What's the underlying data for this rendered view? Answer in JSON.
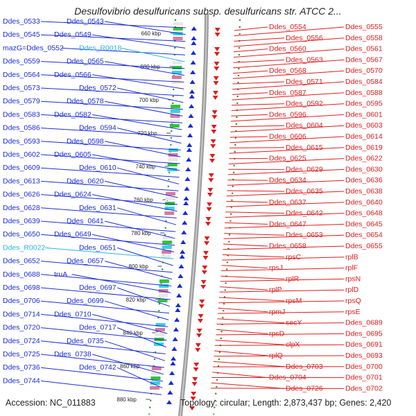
{
  "title": "Desulfovibrio desulfuricans subsp. desulfuricans str. ATCC 2...",
  "footer": {
    "accession": "Accession: NC_011883",
    "info": "Topology: circular; Length: 2,873,437 bp; Genes: 2,420"
  },
  "colors": {
    "left_strand": "#1a2bd6",
    "rna": "#27b4e6",
    "right_strand": "#e01b1b",
    "backbone": "#999999",
    "tick_dots": "#2a8a2a"
  },
  "scale_ticks": [
    "660 kbp",
    "680 kbp",
    "700 kbp",
    "720 kbp",
    "740 kbp",
    "760 kbp",
    "780 kbp",
    "800 kbp",
    "820 kbp",
    "840 kbp",
    "860 kbp",
    "880 kbp"
  ],
  "left_labels": [
    {
      "text": "Ddes_0533",
      "kind": "gene"
    },
    {
      "text": "Ddes_0543",
      "kind": "gene"
    },
    {
      "text": "Ddes_0545",
      "kind": "gene"
    },
    {
      "text": "Ddes_0549",
      "kind": "gene"
    },
    {
      "text": "mazG=Ddes_0552",
      "kind": "gene"
    },
    {
      "text": "Ddes_R0018",
      "kind": "rna"
    },
    {
      "text": "Ddes_0559",
      "kind": "gene"
    },
    {
      "text": "Ddes_0565",
      "kind": "gene"
    },
    {
      "text": "Ddes_0564",
      "kind": "gene"
    },
    {
      "text": "Ddes_0566",
      "kind": "gene"
    },
    {
      "text": "Ddes_0573",
      "kind": "gene"
    },
    {
      "text": "Ddes_0572",
      "kind": "gene"
    },
    {
      "text": "Ddes_0579",
      "kind": "gene"
    },
    {
      "text": "Ddes_0578",
      "kind": "gene"
    },
    {
      "text": "Ddes_0583",
      "kind": "gene"
    },
    {
      "text": "Ddes_0582",
      "kind": "gene"
    },
    {
      "text": "Ddes_0586",
      "kind": "gene"
    },
    {
      "text": "Ddes_0594",
      "kind": "gene"
    },
    {
      "text": "Ddes_0593",
      "kind": "gene"
    },
    {
      "text": "Ddes_0598",
      "kind": "gene"
    },
    {
      "text": "Ddes_0602",
      "kind": "gene"
    },
    {
      "text": "Ddes_0605",
      "kind": "gene"
    },
    {
      "text": "Ddes_0609",
      "kind": "gene"
    },
    {
      "text": "Ddes_0610",
      "kind": "gene"
    },
    {
      "text": "Ddes_0613",
      "kind": "gene"
    },
    {
      "text": "Ddes_0620",
      "kind": "gene"
    },
    {
      "text": "Ddes_0626",
      "kind": "gene"
    },
    {
      "text": "Ddes_0624",
      "kind": "gene"
    },
    {
      "text": "Ddes_0628",
      "kind": "gene"
    },
    {
      "text": "Ddes_0631",
      "kind": "gene"
    },
    {
      "text": "Ddes_0639",
      "kind": "gene"
    },
    {
      "text": "Ddes_0641",
      "kind": "gene"
    },
    {
      "text": "Ddes_0650",
      "kind": "gene"
    },
    {
      "text": "Ddes_0649",
      "kind": "gene"
    },
    {
      "text": "Ddes_R0022",
      "kind": "rna"
    },
    {
      "text": "Ddes_0651",
      "kind": "gene"
    },
    {
      "text": "Ddes_0652",
      "kind": "gene"
    },
    {
      "text": "Ddes_0657",
      "kind": "gene"
    },
    {
      "text": "Ddes_0688",
      "kind": "gene"
    },
    {
      "text": "truA",
      "kind": "gene"
    },
    {
      "text": "Ddes_0698",
      "kind": "gene"
    },
    {
      "text": "Ddes_0697",
      "kind": "gene"
    },
    {
      "text": "Ddes_0706",
      "kind": "gene"
    },
    {
      "text": "Ddes_0699",
      "kind": "gene"
    },
    {
      "text": "Ddes_0714",
      "kind": "gene"
    },
    {
      "text": "Ddes_0710",
      "kind": "gene"
    },
    {
      "text": "Ddes_0720",
      "kind": "gene"
    },
    {
      "text": "Ddes_0717",
      "kind": "gene"
    },
    {
      "text": "Ddes_0724",
      "kind": "gene"
    },
    {
      "text": "Ddes_0735",
      "kind": "gene"
    },
    {
      "text": "Ddes_0725",
      "kind": "gene"
    },
    {
      "text": "Ddes_0738",
      "kind": "gene"
    },
    {
      "text": "Ddes_0736",
      "kind": "gene"
    },
    {
      "text": "Ddes_0742",
      "kind": "gene"
    },
    {
      "text": "Ddes_0744",
      "kind": "gene"
    }
  ],
  "right_labels": [
    {
      "text": "Ddes_0554"
    },
    {
      "text": "Ddes_0555"
    },
    {
      "text": "Ddes_0556"
    },
    {
      "text": "Ddes_0558"
    },
    {
      "text": "Ddes_0560"
    },
    {
      "text": "Ddes_0561"
    },
    {
      "text": "Ddes_0563"
    },
    {
      "text": "Ddes_0567"
    },
    {
      "text": "Ddes_0568"
    },
    {
      "text": "Ddes_0570"
    },
    {
      "text": "Ddes_0571"
    },
    {
      "text": "Ddes_0584"
    },
    {
      "text": "Ddes_0587"
    },
    {
      "text": "Ddes_0588"
    },
    {
      "text": "Ddes_0592"
    },
    {
      "text": "Ddes_0595"
    },
    {
      "text": "Ddes_0596"
    },
    {
      "text": "Ddes_0601"
    },
    {
      "text": "Ddes_0604"
    },
    {
      "text": "Ddes_0603"
    },
    {
      "text": "Ddes_0606"
    },
    {
      "text": "Ddes_0614"
    },
    {
      "text": "Ddes_0615"
    },
    {
      "text": "Ddes_0619"
    },
    {
      "text": "Ddes_0625"
    },
    {
      "text": "Ddes_0622"
    },
    {
      "text": "Ddes_0629"
    },
    {
      "text": "Ddes_0630"
    },
    {
      "text": "Ddes_0634"
    },
    {
      "text": "Ddes_0636"
    },
    {
      "text": "Ddes_0635"
    },
    {
      "text": "Ddes_0638"
    },
    {
      "text": "Ddes_0637"
    },
    {
      "text": "Ddes_0640"
    },
    {
      "text": "Ddes_0642"
    },
    {
      "text": "Ddes_0648"
    },
    {
      "text": "Ddes_0647"
    },
    {
      "text": "Ddes_0645"
    },
    {
      "text": "Ddes_0653"
    },
    {
      "text": "Ddes_0654"
    },
    {
      "text": "Ddes_0658"
    },
    {
      "text": "Ddes_0655"
    },
    {
      "text": "rpsC"
    },
    {
      "text": "rplB"
    },
    {
      "text": "rpsJ"
    },
    {
      "text": "rplF"
    },
    {
      "text": "rplR"
    },
    {
      "text": "rpsN"
    },
    {
      "text": "rplP"
    },
    {
      "text": "rplD"
    },
    {
      "text": "rpsM"
    },
    {
      "text": "rpsQ"
    },
    {
      "text": "rpmJ"
    },
    {
      "text": "rpsE"
    },
    {
      "text": "secY"
    },
    {
      "text": "Ddes_0689"
    },
    {
      "text": "rpsD"
    },
    {
      "text": "Ddes_0695"
    },
    {
      "text": "clpX"
    },
    {
      "text": "Ddes_0691"
    },
    {
      "text": "rplQ"
    },
    {
      "text": "Ddes_0693"
    },
    {
      "text": "Ddes_0703"
    },
    {
      "text": "Ddes_0700"
    },
    {
      "text": "Ddes_0704"
    },
    {
      "text": "Ddes_0701"
    },
    {
      "text": "Ddes_0726"
    },
    {
      "text": "Ddes_0702"
    }
  ]
}
